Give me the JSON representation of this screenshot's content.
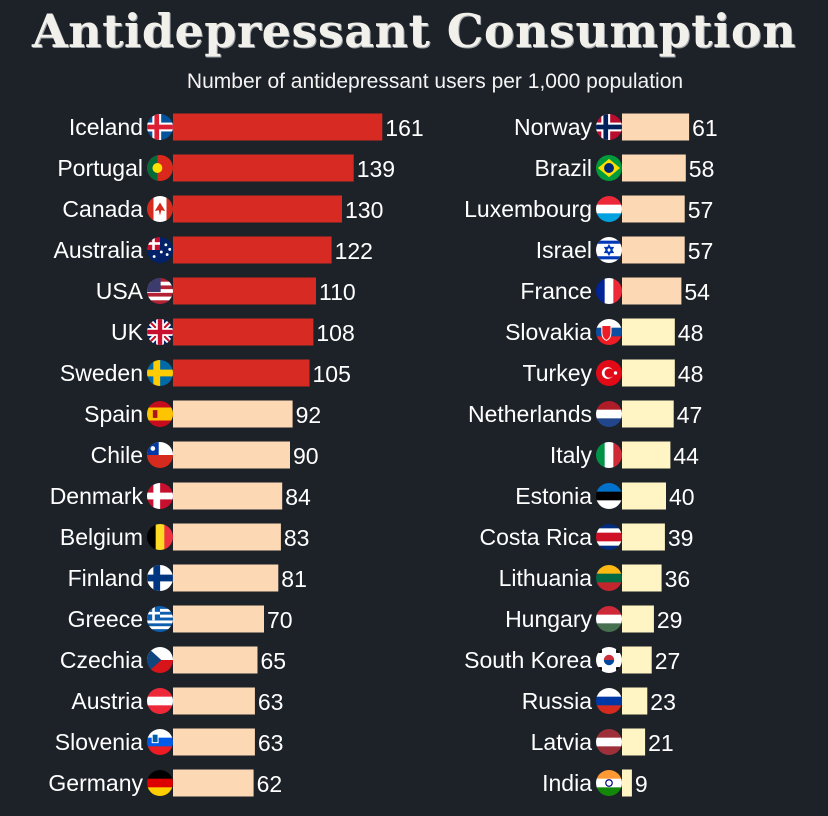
{
  "chart_data": {
    "type": "bar",
    "orientation": "horizontal",
    "title": "Antidepressant Consumption",
    "subtitle": "Number of antidepressant users per 1,000 population",
    "columns": [
      {
        "rows": [
          {
            "country": "Iceland",
            "value": 161,
            "flag": "iceland-flag-icon",
            "color": "#d72a22"
          },
          {
            "country": "Portugal",
            "value": 139,
            "flag": "portugal-flag-icon",
            "color": "#d72a22"
          },
          {
            "country": "Canada",
            "value": 130,
            "flag": "canada-flag-icon",
            "color": "#d72a22"
          },
          {
            "country": "Australia",
            "value": 122,
            "flag": "australia-flag-icon",
            "color": "#d72a22"
          },
          {
            "country": "USA",
            "value": 110,
            "flag": "usa-flag-icon",
            "color": "#d72a22"
          },
          {
            "country": "UK",
            "value": 108,
            "flag": "uk-flag-icon",
            "color": "#d72a22"
          },
          {
            "country": "Sweden",
            "value": 105,
            "flag": "sweden-flag-icon",
            "color": "#d72a22"
          },
          {
            "country": "Spain",
            "value": 92,
            "flag": "spain-flag-icon",
            "color": "#fcd8b4"
          },
          {
            "country": "Chile",
            "value": 90,
            "flag": "chile-flag-icon",
            "color": "#fcd8b4"
          },
          {
            "country": "Denmark",
            "value": 84,
            "flag": "denmark-flag-icon",
            "color": "#fcd8b4"
          },
          {
            "country": "Belgium",
            "value": 83,
            "flag": "belgium-flag-icon",
            "color": "#fcd8b4"
          },
          {
            "country": "Finland",
            "value": 81,
            "flag": "finland-flag-icon",
            "color": "#fcd8b4"
          },
          {
            "country": "Greece",
            "value": 70,
            "flag": "greece-flag-icon",
            "color": "#fcd8b4"
          },
          {
            "country": "Czechia",
            "value": 65,
            "flag": "czechia-flag-icon",
            "color": "#fcd8b4"
          },
          {
            "country": "Austria",
            "value": 63,
            "flag": "austria-flag-icon",
            "color": "#fcd8b4"
          },
          {
            "country": "Slovenia",
            "value": 63,
            "flag": "slovenia-flag-icon",
            "color": "#fcd8b4"
          },
          {
            "country": "Germany",
            "value": 62,
            "flag": "germany-flag-icon",
            "color": "#fcd8b4"
          }
        ]
      },
      {
        "rows": [
          {
            "country": "Norway",
            "value": 61,
            "flag": "norway-flag-icon",
            "color": "#fcd8b4"
          },
          {
            "country": "Brazil",
            "value": 58,
            "flag": "brazil-flag-icon",
            "color": "#fcd8b4"
          },
          {
            "country": "Luxembourg",
            "value": 57,
            "flag": "luxembourg-flag-icon",
            "color": "#fcd8b4"
          },
          {
            "country": "Israel",
            "value": 57,
            "flag": "israel-flag-icon",
            "color": "#fcd8b4"
          },
          {
            "country": "France",
            "value": 54,
            "flag": "france-flag-icon",
            "color": "#fcd8b4"
          },
          {
            "country": "Slovakia",
            "value": 48,
            "flag": "slovakia-flag-icon",
            "color": "#fff5c4"
          },
          {
            "country": "Turkey",
            "value": 48,
            "flag": "turkey-flag-icon",
            "color": "#fff5c4"
          },
          {
            "country": "Netherlands",
            "value": 47,
            "flag": "netherlands-flag-icon",
            "color": "#fff5c4"
          },
          {
            "country": "Italy",
            "value": 44,
            "flag": "italy-flag-icon",
            "color": "#fff5c4"
          },
          {
            "country": "Estonia",
            "value": 40,
            "flag": "estonia-flag-icon",
            "color": "#fff5c4"
          },
          {
            "country": "Costa Rica",
            "value": 39,
            "flag": "costa-rica-flag-icon",
            "color": "#fff5c4"
          },
          {
            "country": "Lithuania",
            "value": 36,
            "flag": "lithuania-flag-icon",
            "color": "#fff5c4"
          },
          {
            "country": "Hungary",
            "value": 29,
            "flag": "hungary-flag-icon",
            "color": "#fff5c4"
          },
          {
            "country": "South Korea",
            "value": 27,
            "flag": "south-korea-flag-icon",
            "color": "#fff5c4"
          },
          {
            "country": "Russia",
            "value": 23,
            "flag": "russia-flag-icon",
            "color": "#fff5c4"
          },
          {
            "country": "Latvia",
            "value": 21,
            "flag": "latvia-flag-icon",
            "color": "#fff5c4"
          },
          {
            "country": "India",
            "value": 9,
            "flag": "india-flag-icon",
            "color": "#fff5c4"
          }
        ]
      }
    ]
  }
}
